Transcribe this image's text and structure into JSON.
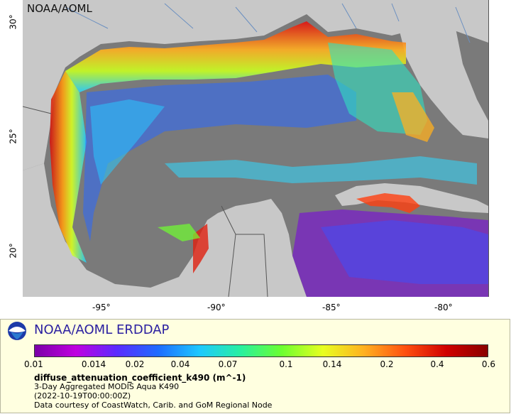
{
  "map": {
    "watermark": "NOAA/AOML",
    "lon_ticks": [
      "-95°",
      "-90°",
      "-85°",
      "-80°"
    ],
    "lat_ticks": [
      "30°",
      "25°",
      "20°"
    ],
    "colors": {
      "no_data": "#7a7a7a",
      "land": "#c8c8c8",
      "border_lines": "#555555",
      "rivers": "#6a8fc0"
    }
  },
  "legend": {
    "title": "NOAA/AOML ERDDAP",
    "colorbar_ticks": [
      "0.01",
      "0.014",
      "0.02",
      "0.04",
      "0.07",
      "0.1",
      "0.14",
      "0.2",
      "0.4",
      "0.6"
    ],
    "colorbar_colors": [
      "#7a00a8",
      "#c000e0",
      "#5a2cff",
      "#1e6cff",
      "#1ec8ff",
      "#28f0a0",
      "#6cff30",
      "#e8ff20",
      "#ffb020",
      "#ff5010",
      "#d00000",
      "#8a0000"
    ],
    "variable": "diffuse_attenuation_coefficient_k490 (m^-1)",
    "dataset": "3-Day Aggregated MODIS Aqua K490",
    "time": "(2022-10-19T00:00:00Z)",
    "credit": "Data courtesy of CoastWatch, Carib. and GoM Regional Node"
  }
}
